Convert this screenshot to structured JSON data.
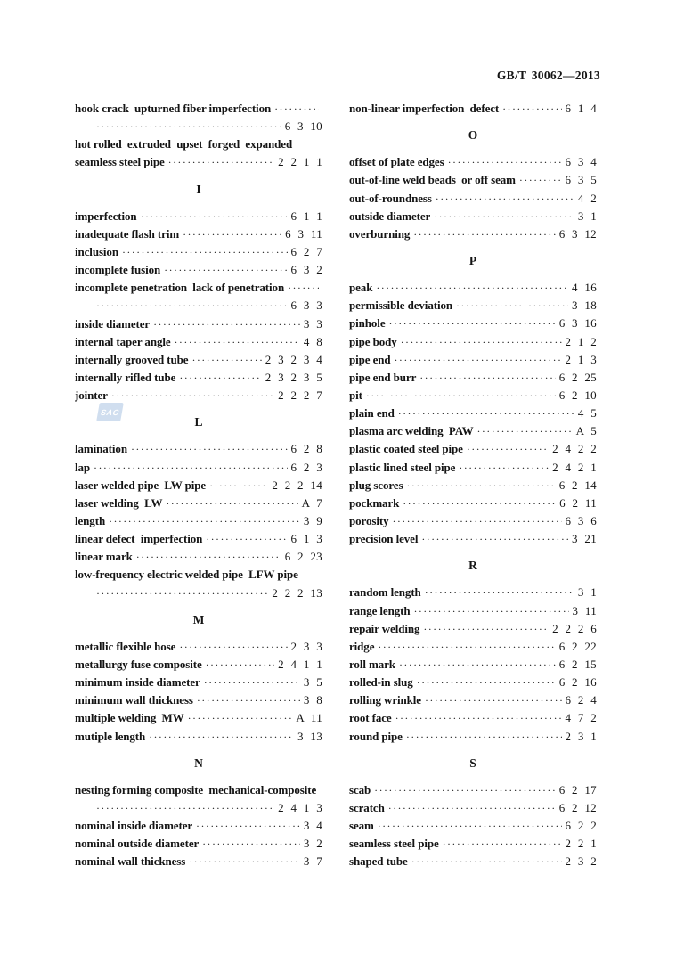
{
  "page": {
    "header": "GB/T 30062—2013",
    "watermark_label": "SAC",
    "colors": {
      "text": "#141414",
      "watermark_bg": "#aac4e2",
      "background": "#ffffff"
    }
  },
  "index": {
    "left_column": [
      {
        "term": "hook crack  upturned fiber imperfection",
        "leader": true,
        "ref": ""
      },
      {
        "term": "",
        "leader": true,
        "ref": "6 3 10",
        "cont": true
      },
      {
        "term": "hot rolled  extruded  upset  forged  expanded",
        "leader": false,
        "ref": ""
      },
      {
        "term": "seamless steel pipe",
        "leader": true,
        "ref": "2 2 1 1"
      },
      {
        "heading": "I"
      },
      {
        "term": "imperfection",
        "leader": true,
        "ref": "6 1 1"
      },
      {
        "term": "inadequate flash trim",
        "leader": true,
        "ref": "6 3 11"
      },
      {
        "term": "inclusion",
        "leader": true,
        "ref": "6 2 7"
      },
      {
        "term": "incomplete fusion",
        "leader": true,
        "ref": "6 3 2"
      },
      {
        "term": "incomplete penetration  lack of penetration",
        "leader": true,
        "ref": ""
      },
      {
        "term": "",
        "leader": true,
        "ref": "6 3 3",
        "cont": true
      },
      {
        "term": "inside diameter",
        "leader": true,
        "ref": "3 3"
      },
      {
        "term": "internal taper angle",
        "leader": true,
        "ref": "4 8"
      },
      {
        "term": "internally grooved tube",
        "leader": true,
        "ref": "2 3 2 3 4"
      },
      {
        "term": "internally rifled tube",
        "leader": true,
        "ref": "2 3 2 3 5"
      },
      {
        "term": "jointer",
        "leader": true,
        "ref": "2 2 2 7"
      },
      {
        "heading": "L"
      },
      {
        "term": "lamination",
        "leader": true,
        "ref": "6 2 8"
      },
      {
        "term": "lap",
        "leader": true,
        "ref": "6 2 3"
      },
      {
        "term": "laser welded pipe  LW pipe",
        "leader": true,
        "ref": "2 2 2 14"
      },
      {
        "term": "laser welding  LW",
        "leader": true,
        "ref": "A 7"
      },
      {
        "term": "length",
        "leader": true,
        "ref": "3 9"
      },
      {
        "term": "linear defect  imperfection",
        "leader": true,
        "ref": "6 1 3"
      },
      {
        "term": "linear mark",
        "leader": true,
        "ref": "6 2 23"
      },
      {
        "term": "low-frequency electric welded pipe  LFW pipe",
        "leader": false,
        "ref": ""
      },
      {
        "term": "",
        "leader": true,
        "ref": "2 2 2 13",
        "cont": true
      },
      {
        "heading": "M"
      },
      {
        "term": "metallic flexible hose",
        "leader": true,
        "ref": "2 3 3"
      },
      {
        "term": "metallurgy fuse composite",
        "leader": true,
        "ref": "2 4 1 1"
      },
      {
        "term": "minimum inside diameter",
        "leader": true,
        "ref": "3 5"
      },
      {
        "term": "minimum wall thickness",
        "leader": true,
        "ref": "3 8"
      },
      {
        "term": "multiple welding  MW",
        "leader": true,
        "ref": "A 11"
      },
      {
        "term": "mutiple length",
        "leader": true,
        "ref": "3 13"
      },
      {
        "heading": "N"
      },
      {
        "term": "nesting forming composite  mechanical-composite",
        "leader": false,
        "ref": ""
      },
      {
        "term": "",
        "leader": true,
        "ref": "2 4 1 3",
        "cont": true
      },
      {
        "term": "nominal inside diameter",
        "leader": true,
        "ref": "3 4"
      },
      {
        "term": "nominal outside diameter",
        "leader": true,
        "ref": "3 2"
      },
      {
        "term": "nominal wall thickness",
        "leader": true,
        "ref": "3 7"
      }
    ],
    "right_column": [
      {
        "term": "non-linear imperfection  defect",
        "leader": true,
        "ref": "6 1 4"
      },
      {
        "heading": "O"
      },
      {
        "term": "offset of plate edges",
        "leader": true,
        "ref": "6 3 4"
      },
      {
        "term": "out-of-line weld beads  or off seam",
        "leader": true,
        "ref": "6 3 5"
      },
      {
        "term": "out-of-roundness",
        "leader": true,
        "ref": "4 2"
      },
      {
        "term": "outside diameter",
        "leader": true,
        "ref": "3 1"
      },
      {
        "term": "overburning",
        "leader": true,
        "ref": "6 3 12"
      },
      {
        "heading": "P"
      },
      {
        "term": "peak",
        "leader": true,
        "ref": "4 16"
      },
      {
        "term": "permissible deviation",
        "leader": true,
        "ref": "3 18"
      },
      {
        "term": "pinhole",
        "leader": true,
        "ref": "6 3 16"
      },
      {
        "term": "pipe body",
        "leader": true,
        "ref": "2 1 2"
      },
      {
        "term": "pipe end",
        "leader": true,
        "ref": "2 1 3"
      },
      {
        "term": "pipe end burr",
        "leader": true,
        "ref": "6 2 25"
      },
      {
        "term": "pit",
        "leader": true,
        "ref": "6 2 10"
      },
      {
        "term": "plain end",
        "leader": true,
        "ref": "4 5"
      },
      {
        "term": "plasma arc welding  PAW",
        "leader": true,
        "ref": "A 5"
      },
      {
        "term": "plastic coated steel pipe",
        "leader": true,
        "ref": "2 4 2 2"
      },
      {
        "term": "plastic lined steel pipe",
        "leader": true,
        "ref": "2 4 2 1"
      },
      {
        "term": "plug scores",
        "leader": true,
        "ref": "6 2 14"
      },
      {
        "term": "pockmark",
        "leader": true,
        "ref": "6 2 11"
      },
      {
        "term": "porosity",
        "leader": true,
        "ref": "6 3 6"
      },
      {
        "term": "precision level",
        "leader": true,
        "ref": "3 21"
      },
      {
        "heading": "R"
      },
      {
        "term": "random length",
        "leader": true,
        "ref": "3 1"
      },
      {
        "term": "range length",
        "leader": true,
        "ref": "3 11"
      },
      {
        "term": "repair welding",
        "leader": true,
        "ref": "2 2 2 6"
      },
      {
        "term": "ridge",
        "leader": true,
        "ref": "6 2 22"
      },
      {
        "term": "roll mark",
        "leader": true,
        "ref": "6 2 15"
      },
      {
        "term": "rolled-in slug",
        "leader": true,
        "ref": "6 2 16"
      },
      {
        "term": "rolling wrinkle",
        "leader": true,
        "ref": "6 2 4"
      },
      {
        "term": "root face",
        "leader": true,
        "ref": "4 7 2"
      },
      {
        "term": "round pipe",
        "leader": true,
        "ref": "2 3 1"
      },
      {
        "heading": "S"
      },
      {
        "term": "scab",
        "leader": true,
        "ref": "6 2 17"
      },
      {
        "term": "scratch",
        "leader": true,
        "ref": "6 2 12"
      },
      {
        "term": "seam",
        "leader": true,
        "ref": "6 2 2"
      },
      {
        "term": "seamless steel pipe",
        "leader": true,
        "ref": "2 2 1"
      },
      {
        "term": "shaped tube",
        "leader": true,
        "ref": "2 3 2"
      }
    ]
  }
}
